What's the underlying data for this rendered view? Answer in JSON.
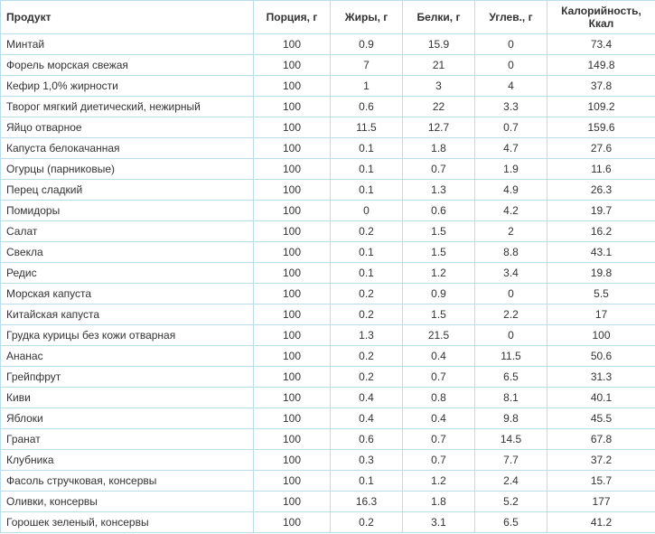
{
  "table": {
    "columns": [
      {
        "label": "Продукт",
        "align": "left"
      },
      {
        "label": "Порция, г",
        "align": "center"
      },
      {
        "label": "Жиры, г",
        "align": "center"
      },
      {
        "label": "Белки, г",
        "align": "center"
      },
      {
        "label": "Углев., г",
        "align": "center"
      },
      {
        "label": "Калорийность, Ккал",
        "align": "center"
      }
    ],
    "rows": [
      [
        "Минтай",
        "100",
        "0.9",
        "15.9",
        "0",
        "73.4"
      ],
      [
        "Форель морская свежая",
        "100",
        "7",
        "21",
        "0",
        "149.8"
      ],
      [
        "Кефир 1,0% жирности",
        "100",
        "1",
        "3",
        "4",
        "37.8"
      ],
      [
        "Творог мягкий диетический, нежирный",
        "100",
        "0.6",
        "22",
        "3.3",
        "109.2"
      ],
      [
        "Яйцо отварное",
        "100",
        "11.5",
        "12.7",
        "0.7",
        "159.6"
      ],
      [
        "Капуста белокачанная",
        "100",
        "0.1",
        "1.8",
        "4.7",
        "27.6"
      ],
      [
        "Огурцы (парниковые)",
        "100",
        "0.1",
        "0.7",
        "1.9",
        "11.6"
      ],
      [
        "Перец сладкий",
        "100",
        "0.1",
        "1.3",
        "4.9",
        "26.3"
      ],
      [
        "Помидоры",
        "100",
        "0",
        "0.6",
        "4.2",
        "19.7"
      ],
      [
        "Салат",
        "100",
        "0.2",
        "1.5",
        "2",
        "16.2"
      ],
      [
        "Свекла",
        "100",
        "0.1",
        "1.5",
        "8.8",
        "43.1"
      ],
      [
        "Редис",
        "100",
        "0.1",
        "1.2",
        "3.4",
        "19.8"
      ],
      [
        "Морская капуста",
        "100",
        "0.2",
        "0.9",
        "0",
        "5.5"
      ],
      [
        "Китайская капуста",
        "100",
        "0.2",
        "1.5",
        "2.2",
        "17"
      ],
      [
        "Грудка курицы без кожи отварная",
        "100",
        "1.3",
        "21.5",
        "0",
        "100"
      ],
      [
        "Ананас",
        "100",
        "0.2",
        "0.4",
        "11.5",
        "50.6"
      ],
      [
        "Грейпфрут",
        "100",
        "0.2",
        "0.7",
        "6.5",
        "31.3"
      ],
      [
        "Киви",
        "100",
        "0.4",
        "0.8",
        "8.1",
        "40.1"
      ],
      [
        "Яблоки",
        "100",
        "0.4",
        "0.4",
        "9.8",
        "45.5"
      ],
      [
        "Гранат",
        "100",
        "0.6",
        "0.7",
        "14.5",
        "67.8"
      ],
      [
        "Клубника",
        "100",
        "0.3",
        "0.7",
        "7.7",
        "37.2"
      ],
      [
        "Фасоль стручковая, консервы",
        "100",
        "0.1",
        "1.2",
        "2.4",
        "15.7"
      ],
      [
        "Оливки, консервы",
        "100",
        "16.3",
        "1.8",
        "5.2",
        "177"
      ],
      [
        "Горошек зеленый, консервы",
        "100",
        "0.2",
        "3.1",
        "6.5",
        "41.2"
      ]
    ],
    "border_color": "#b8dce8",
    "text_color": "#333333",
    "font_size": 12,
    "background_color": "#ffffff"
  }
}
